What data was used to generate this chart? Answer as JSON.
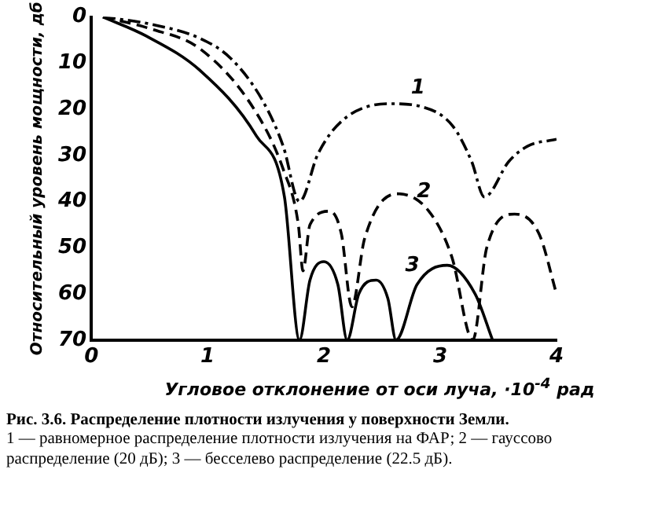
{
  "chart_data": {
    "type": "line",
    "title": "Рис. 3.6. Распределение плотности излучения у поверхности Земли.",
    "xlabel": "Угловое отклонение от оси луча, ·10$^{-4}$ рад",
    "ylabel": "Относительный уровень мощности, дб",
    "xlim": [
      0,
      4
    ],
    "xticks": [
      0,
      1,
      2,
      3,
      4
    ],
    "ylim": [
      70,
      0
    ],
    "yticks": [
      0,
      10,
      20,
      30,
      40,
      50,
      60,
      70
    ],
    "grid": false,
    "legend": false,
    "marker": "none",
    "series": [
      {
        "color": "#000000",
        "line_style": "dotted",
        "x": [
          0.1,
          0.5,
          0.94,
          1.2,
          1.47,
          1.65,
          1.79,
          1.95,
          2.16,
          2.56,
          2.85,
          3.11,
          3.27,
          3.38,
          3.59,
          3.75,
          4.0
        ],
        "values": [
          0,
          1.5,
          4.7,
          9,
          18,
          28,
          40,
          29.6,
          22.4,
          18.8,
          19.5,
          23.7,
          31.3,
          39,
          31.3,
          28,
          26.5
        ]
      },
      {
        "color": "#000000",
        "line_style": "dashed",
        "x": [
          0.1,
          0.5,
          0.94,
          1.4,
          1.65,
          1.78,
          1.82,
          1.88,
          2.05,
          2.15,
          2.24,
          2.35,
          2.63,
          2.9,
          3.1,
          3.28,
          3.4,
          3.64,
          3.85,
          4.0
        ],
        "values": [
          0,
          2.5,
          7,
          20,
          33,
          45,
          55,
          45,
          42.1,
          47,
          62.8,
          48,
          38.3,
          42,
          52,
          70,
          50,
          42.7,
          47,
          60
        ]
      },
      {
        "color": "#000000",
        "line_style": "solid",
        "x": [
          0.1,
          0.47,
          0.94,
          1.42,
          1.66,
          1.79,
          1.88,
          2.0,
          2.12,
          2.2,
          2.3,
          2.45,
          2.55,
          2.62,
          2.8,
          3.06,
          3.3,
          3.45
        ],
        "values": [
          0,
          4.1,
          11.7,
          25.8,
          38.9,
          70,
          57,
          53,
          58,
          70,
          60,
          57,
          61,
          70,
          58,
          53.8,
          60,
          70
        ]
      }
    ],
    "annotations": [
      {
        "text": "1",
        "x": 2.85,
        "y": 19.5
      },
      {
        "text": "2",
        "x": 2.9,
        "y": 42
      },
      {
        "text": "3",
        "x": 2.8,
        "y": 58
      },
      "1 — равномерное распределение плотности излучения на ФАР; 2 — гауссово распределение (20 дБ); 3 — бесселево распределение (22.5 дБ)."
    ]
  }
}
